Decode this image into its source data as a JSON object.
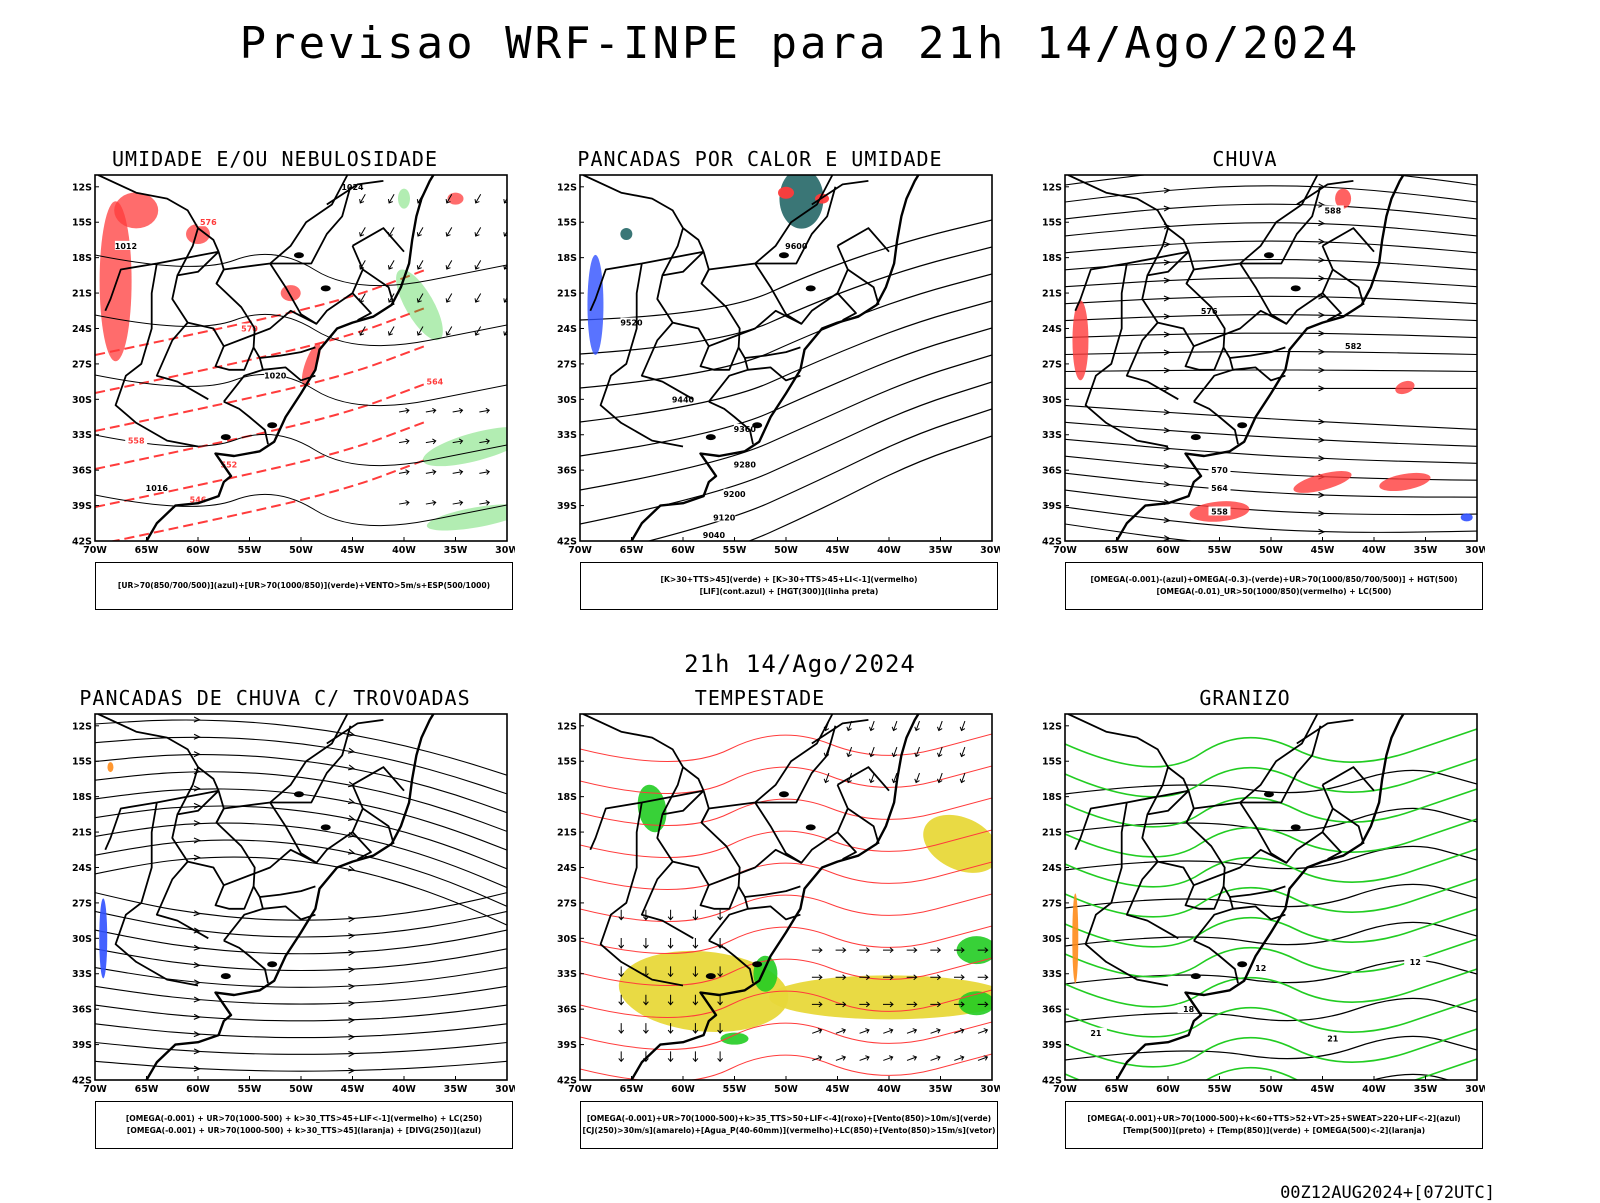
{
  "main_title": "Previsao WRF-INPE  para 21h 14/Ago/2024",
  "mid_time": "21h 14/Ago/2024",
  "run_stamp": "00Z12AUG2024+[072UTC]",
  "axes": {
    "lat_labels": [
      "12S",
      "15S",
      "18S",
      "21S",
      "24S",
      "27S",
      "30S",
      "33S",
      "36S",
      "39S",
      "42S"
    ],
    "lon_labels": [
      "70W",
      "65W",
      "60W",
      "55W",
      "50W",
      "45W",
      "40W",
      "35W",
      "30W"
    ]
  },
  "colors": {
    "contour_black": "#000000",
    "red": "#ff3b3b",
    "green": "#22cc22",
    "blue": "#3050ff",
    "yellow": "#e8d83a",
    "teal": "#2f6f6f",
    "orange": "#ff8c1a"
  },
  "panels": [
    {
      "id": "umidade",
      "title": "UMIDADE E/OU NEBULOSIDADE",
      "legend": [
        "[UR>70(850/700/500)](azul)+[UR>70(1000/850)](verde)+VENTO>5m/s+ESP(500/1000)"
      ],
      "contour_labels": [
        "1012",
        "1016",
        "1020",
        "1024",
        "576",
        "570",
        "564",
        "558",
        "552",
        "546"
      ]
    },
    {
      "id": "pancadas-calor",
      "title": "PANCADAS POR CALOR E UMIDADE",
      "legend": [
        "[K>30+TTS>45](verde) + [K>30+TTS>45+LI<-1](vermelho)",
        "[LIF](cont.azul) + [HGT(300)](linha preta)"
      ],
      "contour_labels": [
        "9600",
        "9520",
        "9440",
        "9360",
        "9280",
        "9200",
        "9120",
        "9040"
      ]
    },
    {
      "id": "chuva",
      "title": "CHUVA",
      "legend": [
        "[OMEGA(-0.001)-(azul)+OMEGA(-0.3)-(verde)+UR>70(1000/850/700/500)] + HGT(500)",
        "[OMEGA(-0.01)_UR>50(1000/850)(vermelho) + LC(500)"
      ],
      "contour_labels": [
        "588",
        "582",
        "576",
        "570",
        "564",
        "558"
      ]
    },
    {
      "id": "trovoadas",
      "title": "PANCADAS DE CHUVA C/ TROVOADAS",
      "legend": [
        "[OMEGA(-0.001) + UR>70(1000-500) + k>30_TTS>45+LIF<-1](vermelho) + LC(250)",
        "[OMEGA(-0.001) + UR>70(1000-500) + k>30_TTS>45](laranja) + [DIVG(250)](azul)"
      ],
      "contour_labels": []
    },
    {
      "id": "tempestade",
      "title": "TEMPESTADE",
      "legend": [
        "[OMEGA(-0.001)+UR>70(1000-500)+k>35_TTS>50+LIF<-4](roxo)+[Vento(850)>10m/s](verde)",
        "[CJ(250)>30m/s](amarelo)+[Agua_P(40-60mm)](vermelho)+LC(850)+[Vento(850)>15m/s](vetor)"
      ],
      "contour_labels": []
    },
    {
      "id": "granizo",
      "title": "GRANIZO",
      "legend": [
        "[OMEGA(-0.001)+UR>70(1000-500)+k<60+TTS>52+VT>25+SWEAT>220+LIF<-2](azul)",
        "[Temp(500)](preto) + [Temp(850)](verde) + [OMEGA(500)<-2](laranja)"
      ],
      "contour_labels": [
        "12",
        "18",
        "21"
      ]
    }
  ]
}
